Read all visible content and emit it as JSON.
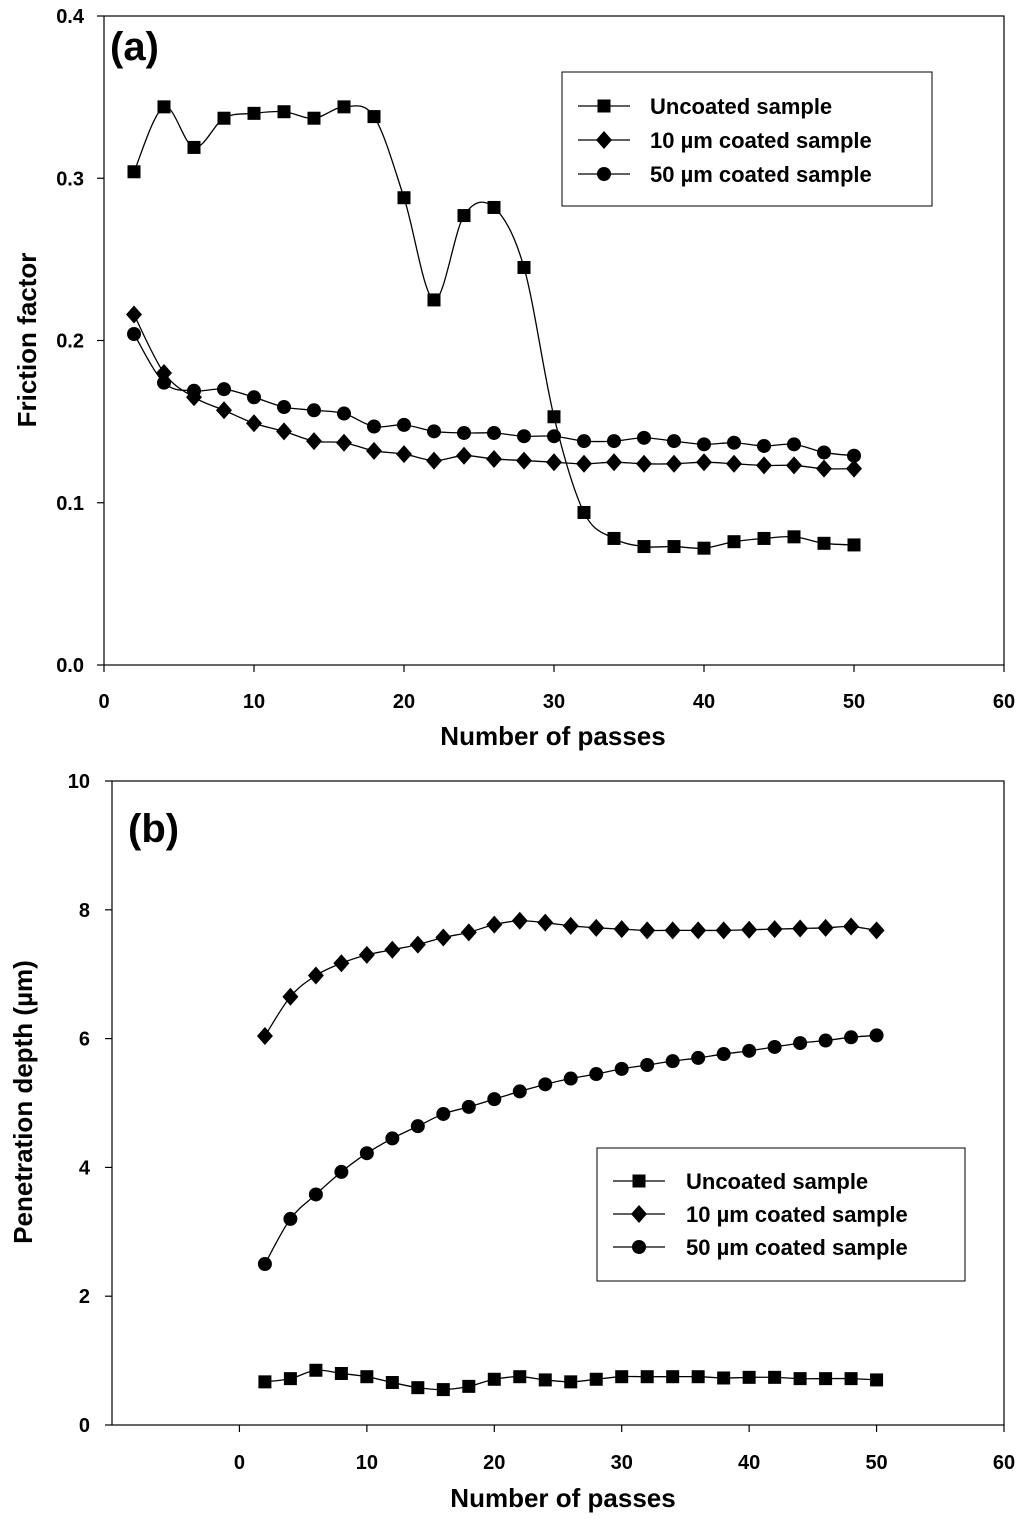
{
  "chart_data": [
    {
      "type": "line",
      "panel_label": "(a)",
      "xlabel": "Number of passes",
      "ylabel": "Friction factor",
      "xlim": [
        0,
        60
      ],
      "ylim": [
        0.0,
        0.4
      ],
      "xticks": [
        "0",
        "10",
        "20",
        "30",
        "40",
        "50",
        "60"
      ],
      "yticks": [
        "0.0",
        "0.1",
        "0.2",
        "0.3",
        "0.4"
      ],
      "legend_position": "top-right",
      "x": [
        2,
        4,
        6,
        8,
        10,
        12,
        14,
        16,
        18,
        20,
        22,
        24,
        26,
        28,
        30,
        32,
        34,
        36,
        38,
        40,
        42,
        44,
        46,
        48,
        50
      ],
      "series": [
        {
          "name": "Uncoated sample",
          "marker": "square",
          "values": [
            0.304,
            0.344,
            0.319,
            0.337,
            0.34,
            0.341,
            0.337,
            0.344,
            0.338,
            0.288,
            0.225,
            0.277,
            0.282,
            0.245,
            0.153,
            0.094,
            0.078,
            0.073,
            0.073,
            0.072,
            0.076,
            0.078,
            0.079,
            0.075,
            0.074
          ]
        },
        {
          "name": "10 µm coated sample",
          "marker": "diamond",
          "values": [
            0.216,
            0.18,
            0.165,
            0.157,
            0.149,
            0.144,
            0.138,
            0.137,
            0.132,
            0.13,
            0.126,
            0.129,
            0.127,
            0.126,
            0.125,
            0.124,
            0.125,
            0.124,
            0.124,
            0.125,
            0.124,
            0.123,
            0.123,
            0.121,
            0.121
          ]
        },
        {
          "name": "50 µm coated sample",
          "marker": "circle",
          "values": [
            0.204,
            0.174,
            0.169,
            0.17,
            0.165,
            0.159,
            0.157,
            0.155,
            0.147,
            0.148,
            0.144,
            0.143,
            0.143,
            0.141,
            0.141,
            0.138,
            0.138,
            0.14,
            0.138,
            0.136,
            0.137,
            0.135,
            0.136,
            0.131,
            0.129
          ]
        }
      ]
    },
    {
      "type": "line",
      "panel_label": "(b)",
      "xlabel": "Number of passes",
      "ylabel": "Penetration depth (µm)",
      "xlim": [
        -10,
        60
      ],
      "ylim": [
        0,
        10
      ],
      "xticks": [
        "0",
        "10",
        "20",
        "30",
        "40",
        "50",
        "60"
      ],
      "yticks": [
        "0",
        "2",
        "4",
        "6",
        "8",
        "10"
      ],
      "legend_position": "lower-right",
      "x": [
        2,
        4,
        6,
        8,
        10,
        12,
        14,
        16,
        18,
        20,
        22,
        24,
        26,
        28,
        30,
        32,
        34,
        36,
        38,
        40,
        42,
        44,
        46,
        48,
        50
      ],
      "series": [
        {
          "name": "Uncoated sample",
          "marker": "square",
          "values": [
            0.67,
            0.72,
            0.85,
            0.8,
            0.75,
            0.66,
            0.58,
            0.55,
            0.6,
            0.71,
            0.75,
            0.7,
            0.67,
            0.71,
            0.75,
            0.75,
            0.75,
            0.75,
            0.73,
            0.74,
            0.74,
            0.72,
            0.72,
            0.72,
            0.7
          ]
        },
        {
          "name": "10 µm coated sample",
          "marker": "diamond",
          "values": [
            6.04,
            6.65,
            6.98,
            7.17,
            7.3,
            7.38,
            7.46,
            7.57,
            7.65,
            7.77,
            7.83,
            7.8,
            7.75,
            7.72,
            7.7,
            7.68,
            7.68,
            7.68,
            7.68,
            7.69,
            7.7,
            7.71,
            7.72,
            7.74,
            7.68
          ]
        },
        {
          "name": "50 µm coated sample",
          "marker": "circle",
          "values": [
            2.5,
            3.2,
            3.58,
            3.93,
            4.22,
            4.45,
            4.64,
            4.83,
            4.94,
            5.06,
            5.18,
            5.29,
            5.38,
            5.45,
            5.53,
            5.59,
            5.65,
            5.7,
            5.76,
            5.81,
            5.87,
            5.93,
            5.97,
            6.02,
            6.05
          ]
        }
      ]
    }
  ]
}
